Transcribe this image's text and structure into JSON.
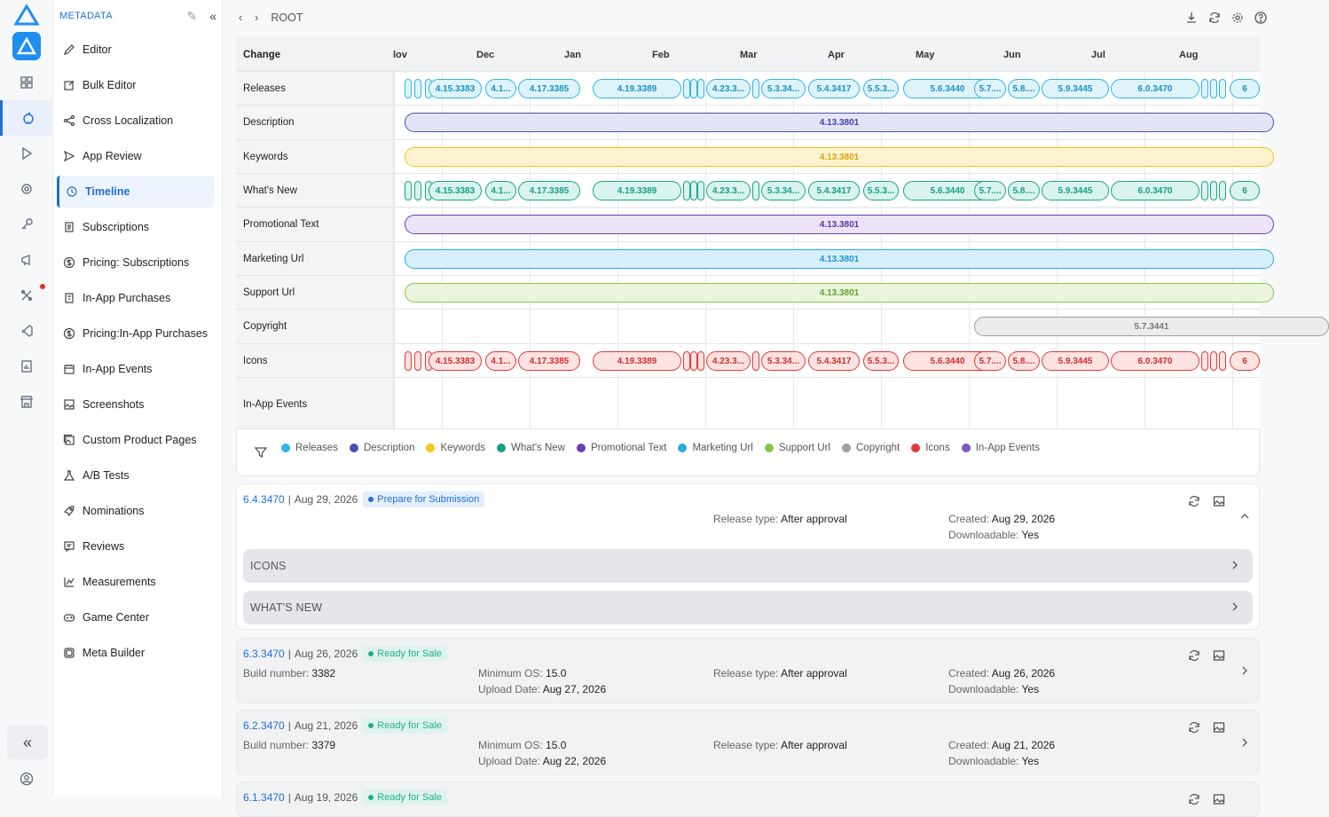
{
  "sidebar": {
    "header": "METADATA",
    "items": [
      {
        "label": "Editor",
        "icon": "pencil-icon"
      },
      {
        "label": "Bulk Editor",
        "icon": "edit-box-icon"
      },
      {
        "label": "Cross Localization",
        "icon": "share-icon"
      },
      {
        "label": "App Review",
        "icon": "send-icon"
      },
      {
        "label": "Timeline",
        "icon": "history-icon",
        "active": true
      },
      {
        "label": "Subscriptions",
        "icon": "document-icon"
      },
      {
        "label": "Pricing: Subscriptions",
        "icon": "dollar-icon"
      },
      {
        "label": "In-App Purchases",
        "icon": "receipt-icon"
      },
      {
        "label": "Pricing:In-App Purchases",
        "icon": "dollar-icon"
      },
      {
        "label": "In-App Events",
        "icon": "calendar-icon"
      },
      {
        "label": "Screenshots",
        "icon": "image-icon"
      },
      {
        "label": "Custom Product Pages",
        "icon": "gallery-icon"
      },
      {
        "label": "A/B Tests",
        "icon": "flask-icon"
      },
      {
        "label": "Nominations",
        "icon": "rocket-icon"
      },
      {
        "label": "Reviews",
        "icon": "review-icon"
      },
      {
        "label": "Measurements",
        "icon": "chart-icon"
      },
      {
        "label": "Game Center",
        "icon": "gamepad-icon"
      },
      {
        "label": "Meta Builder",
        "icon": "layers-icon"
      }
    ]
  },
  "topbar": {
    "breadcrumb": "ROOT"
  },
  "timeline": {
    "header_label": "Change",
    "months": [
      "lov",
      "Dec",
      "Jan",
      "Feb",
      "Mar",
      "Apr",
      "May",
      "Jun",
      "Jul",
      "Aug"
    ],
    "rows": [
      "Releases",
      "Description",
      "Keywords",
      "What's New",
      "Promotional Text",
      "Marketing Url",
      "Support Url",
      "Copyright",
      "Icons",
      "In-App Events"
    ],
    "release_labels": [
      "4.15.3383",
      "4.1...",
      "4.17.3385",
      "4.19.3389",
      "4.23.3...",
      "5.3.34...",
      "5.4.3417",
      "5.5.3...",
      "5.6.3440",
      "5.7....",
      "5.8....",
      "5.9.3445",
      "6.0.3470",
      "6"
    ],
    "span_label": "4.13.3801",
    "copyright_label": "5.7.3441"
  },
  "legend": [
    {
      "label": "Releases",
      "color": "#2fb3e8"
    },
    {
      "label": "Description",
      "color": "#4a4fb8"
    },
    {
      "label": "Keywords",
      "color": "#f5c518"
    },
    {
      "label": "What's New",
      "color": "#16a085"
    },
    {
      "label": "Promotional Text",
      "color": "#6a3fb5"
    },
    {
      "label": "Marketing Url",
      "color": "#2fa8e0"
    },
    {
      "label": "Support Url",
      "color": "#8bc34a"
    },
    {
      "label": "Copyright",
      "color": "#9e9e9e"
    },
    {
      "label": "Icons",
      "color": "#e53935"
    },
    {
      "label": "In-App Events",
      "color": "#7e57c2"
    }
  ],
  "cards": [
    {
      "version": "6.4.3470",
      "date": "Aug 29, 2026",
      "status": "Prepare for Submission",
      "release_type_label": "Release type:",
      "release_type": "After approval",
      "created_label": "Created:",
      "created": "Aug 29, 2026",
      "downloadable_label": "Downloadable:",
      "downloadable": "Yes",
      "sections": [
        "ICONS",
        "WHAT'S NEW"
      ]
    },
    {
      "version": "6.3.3470",
      "date": "Aug 26, 2026",
      "status": "Ready for Sale",
      "build_label": "Build number:",
      "build": "3382",
      "min_os_label": "Minimum OS:",
      "min_os": "15.0",
      "upload_label": "Upload Date:",
      "upload": "Aug 27, 2026",
      "release_type_label": "Release type:",
      "release_type": "After approval",
      "created_label": "Created:",
      "created": "Aug 26, 2026",
      "downloadable_label": "Downloadable:",
      "downloadable": "Yes"
    },
    {
      "version": "6.2.3470",
      "date": "Aug 21, 2026",
      "status": "Ready for Sale",
      "build_label": "Build number:",
      "build": "3379",
      "min_os_label": "Minimum OS:",
      "min_os": "15.0",
      "upload_label": "Upload Date:",
      "upload": "Aug 22, 2026",
      "release_type_label": "Release type:",
      "release_type": "After approval",
      "created_label": "Created:",
      "created": "Aug 21, 2026",
      "downloadable_label": "Downloadable:",
      "downloadable": "Yes"
    },
    {
      "version": "6.1.3470",
      "date": "Aug 19, 2026",
      "status": "Ready for Sale"
    }
  ]
}
